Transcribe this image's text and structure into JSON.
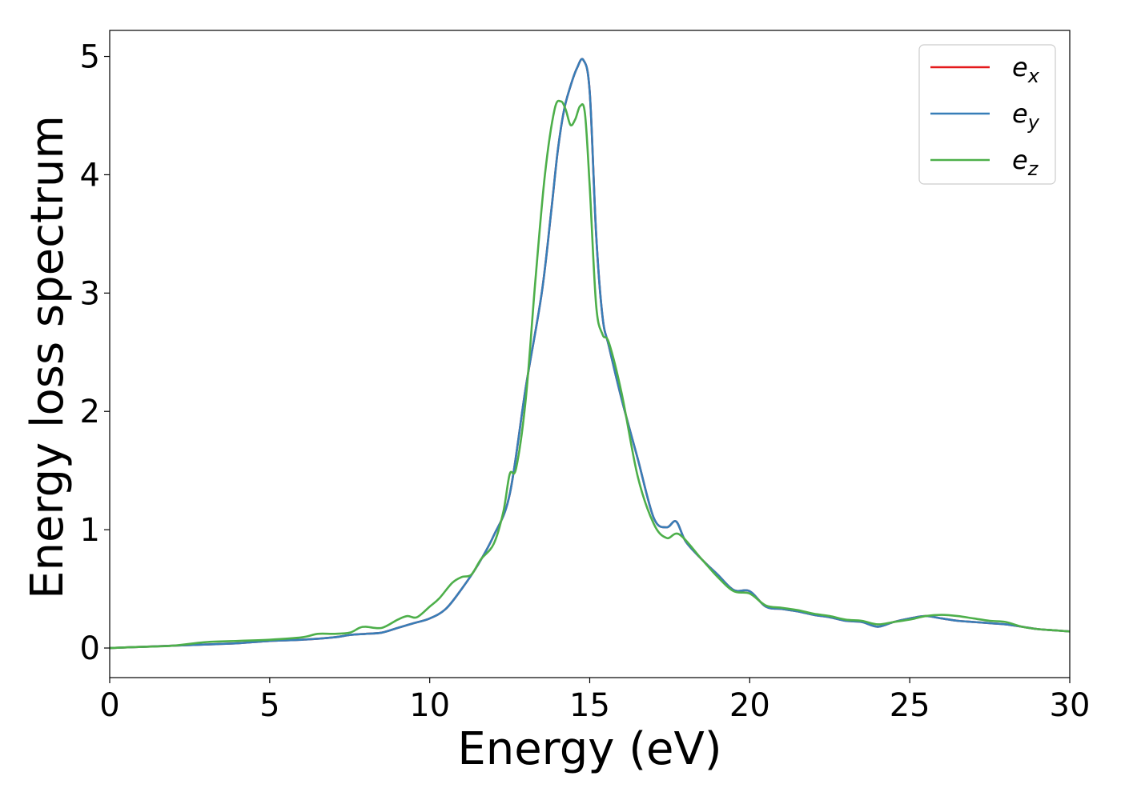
{
  "chart_data": {
    "type": "line",
    "xlabel": "Energy (eV)",
    "ylabel": "Energy loss spectrum",
    "xlim": [
      0,
      30
    ],
    "ylim": [
      -0.25,
      5.22
    ],
    "xticks": [
      "0",
      "5",
      "10",
      "15",
      "20",
      "25",
      "30"
    ],
    "yticks": [
      "0",
      "1",
      "2",
      "3",
      "4",
      "5"
    ],
    "legend_position": "top-right",
    "grid": false,
    "series": [
      {
        "name": "e_x",
        "label_base": "e",
        "label_sub": "x",
        "color": "#e41a1c",
        "x": [
          0,
          1,
          2,
          3,
          4,
          5,
          6,
          7,
          7.5,
          8,
          8.5,
          9,
          9.5,
          10,
          10.5,
          11,
          11.5,
          12,
          12.5,
          13,
          13.5,
          13.8,
          14,
          14.2,
          14.4,
          14.6,
          14.8,
          15,
          15.2,
          15.4,
          15.6,
          16,
          16.5,
          17,
          17.4,
          17.7,
          18,
          18.5,
          19,
          19.5,
          20,
          20.5,
          21,
          21.5,
          22,
          22.5,
          23,
          23.5,
          24,
          24.5,
          25,
          25.5,
          26,
          26.5,
          27,
          27.5,
          28,
          28.5,
          29,
          29.5,
          30
        ],
        "y": [
          0.0,
          0.01,
          0.02,
          0.03,
          0.04,
          0.06,
          0.07,
          0.09,
          0.11,
          0.12,
          0.13,
          0.17,
          0.21,
          0.25,
          0.33,
          0.5,
          0.7,
          0.95,
          1.3,
          2.2,
          3.0,
          3.7,
          4.2,
          4.55,
          4.75,
          4.9,
          4.97,
          4.7,
          3.5,
          2.8,
          2.55,
          2.1,
          1.6,
          1.1,
          1.02,
          1.07,
          0.9,
          0.75,
          0.62,
          0.49,
          0.48,
          0.35,
          0.33,
          0.31,
          0.28,
          0.26,
          0.23,
          0.22,
          0.18,
          0.22,
          0.25,
          0.27,
          0.25,
          0.23,
          0.22,
          0.21,
          0.2,
          0.18,
          0.16,
          0.15,
          0.14
        ]
      },
      {
        "name": "e_y",
        "label_base": "e",
        "label_sub": "y",
        "color": "#377eb8",
        "x": [
          0,
          1,
          2,
          3,
          4,
          5,
          6,
          7,
          7.5,
          8,
          8.5,
          9,
          9.5,
          10,
          10.5,
          11,
          11.5,
          12,
          12.5,
          13,
          13.5,
          13.8,
          14,
          14.2,
          14.4,
          14.6,
          14.8,
          15,
          15.2,
          15.4,
          15.6,
          16,
          16.5,
          17,
          17.4,
          17.7,
          18,
          18.5,
          19,
          19.5,
          20,
          20.5,
          21,
          21.5,
          22,
          22.5,
          23,
          23.5,
          24,
          24.5,
          25,
          25.5,
          26,
          26.5,
          27,
          27.5,
          28,
          28.5,
          29,
          29.5,
          30
        ],
        "y": [
          0.0,
          0.01,
          0.02,
          0.03,
          0.04,
          0.06,
          0.07,
          0.09,
          0.11,
          0.12,
          0.13,
          0.17,
          0.21,
          0.25,
          0.33,
          0.5,
          0.7,
          0.95,
          1.3,
          2.2,
          3.0,
          3.7,
          4.2,
          4.55,
          4.75,
          4.9,
          4.97,
          4.7,
          3.5,
          2.8,
          2.55,
          2.1,
          1.6,
          1.1,
          1.02,
          1.07,
          0.9,
          0.75,
          0.62,
          0.49,
          0.48,
          0.35,
          0.33,
          0.31,
          0.28,
          0.26,
          0.23,
          0.22,
          0.18,
          0.22,
          0.25,
          0.27,
          0.25,
          0.23,
          0.22,
          0.21,
          0.2,
          0.18,
          0.16,
          0.15,
          0.14
        ]
      },
      {
        "name": "e_z",
        "label_base": "e",
        "label_sub": "z",
        "color": "#4daf4a",
        "x": [
          0,
          1,
          2,
          3,
          4,
          5,
          6,
          6.5,
          7,
          7.5,
          7.8,
          8,
          8.5,
          9,
          9.3,
          9.6,
          10,
          10.3,
          10.7,
          11,
          11.3,
          11.6,
          12,
          12.3,
          12.5,
          12.7,
          13,
          13.3,
          13.6,
          13.9,
          14.1,
          14.25,
          14.4,
          14.55,
          14.7,
          14.85,
          15,
          15.2,
          15.4,
          15.6,
          16,
          16.5,
          17,
          17.4,
          17.8,
          18.5,
          19,
          19.5,
          20,
          20.5,
          21,
          21.5,
          22,
          22.5,
          23,
          23.5,
          24,
          24.5,
          25,
          25.5,
          26,
          26.5,
          27,
          27.5,
          28,
          28.5,
          29,
          29.5,
          30
        ],
        "y": [
          0.0,
          0.01,
          0.02,
          0.05,
          0.06,
          0.07,
          0.09,
          0.12,
          0.12,
          0.13,
          0.17,
          0.18,
          0.17,
          0.24,
          0.27,
          0.26,
          0.35,
          0.42,
          0.55,
          0.6,
          0.62,
          0.75,
          0.88,
          1.15,
          1.47,
          1.52,
          2.1,
          3.1,
          4.0,
          4.55,
          4.62,
          4.55,
          4.42,
          4.47,
          4.58,
          4.52,
          3.9,
          2.9,
          2.65,
          2.58,
          2.15,
          1.45,
          1.05,
          0.93,
          0.96,
          0.75,
          0.6,
          0.48,
          0.46,
          0.36,
          0.34,
          0.32,
          0.29,
          0.27,
          0.24,
          0.23,
          0.2,
          0.22,
          0.24,
          0.27,
          0.28,
          0.27,
          0.25,
          0.23,
          0.22,
          0.18,
          0.16,
          0.15,
          0.14
        ]
      }
    ]
  }
}
